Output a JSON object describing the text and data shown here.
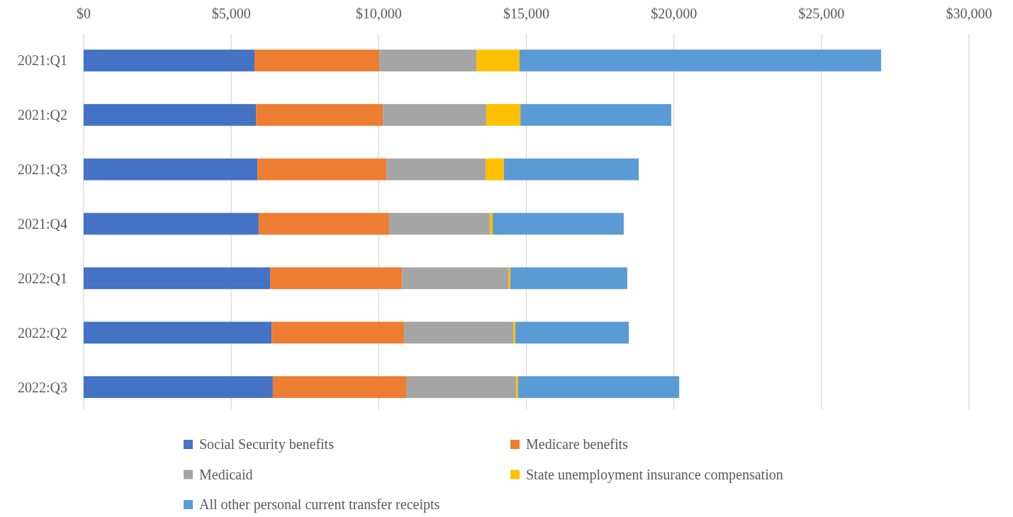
{
  "chart_data": {
    "type": "bar",
    "orientation": "horizontal",
    "stacked": true,
    "categories": [
      "2021:Q1",
      "2021:Q2",
      "2021:Q3",
      "2021:Q4",
      "2022:Q1",
      "2022:Q2",
      "2022:Q3"
    ],
    "series": [
      {
        "name": "Social Security benefits",
        "color": "#4472c4",
        "values": [
          5790,
          5840,
          5890,
          5930,
          6320,
          6370,
          6410
        ]
      },
      {
        "name": "Medicare benefits",
        "color": "#ed7d31",
        "values": [
          4230,
          4300,
          4370,
          4420,
          4470,
          4490,
          4520
        ]
      },
      {
        "name": "Medicaid",
        "color": "#a5a5a5",
        "values": [
          3290,
          3500,
          3360,
          3410,
          3600,
          3700,
          3720
        ]
      },
      {
        "name": "State unemployment insurance compensation",
        "color": "#ffc000",
        "values": [
          1460,
          1160,
          620,
          100,
          70,
          70,
          70
        ]
      },
      {
        "name": "All other personal current transfer receipts",
        "color": "#5b9bd5",
        "values": [
          12250,
          5110,
          4570,
          4440,
          3960,
          3840,
          5460
        ]
      }
    ],
    "xlim": [
      0,
      30000
    ],
    "xticks": [
      {
        "value": 0,
        "label": "$0"
      },
      {
        "value": 5000,
        "label": "$5,000"
      },
      {
        "value": 10000,
        "label": "$10,000"
      },
      {
        "value": 15000,
        "label": "$15,000"
      },
      {
        "value": 20000,
        "label": "$20,000"
      },
      {
        "value": 25000,
        "label": "$25,000"
      },
      {
        "value": 30000,
        "label": "$30,000"
      }
    ],
    "grid": "x",
    "legend": "bottom"
  }
}
